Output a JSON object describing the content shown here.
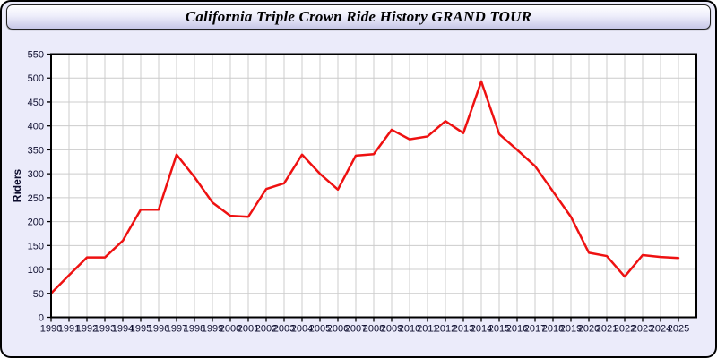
{
  "header": {
    "title": "California Triple Crown Ride History GRAND TOUR"
  },
  "colors": {
    "page_background": "#ebebfa",
    "plot_background": "#ffffff",
    "plot_border": "#000000",
    "grid": "#cccccc",
    "axis_text": "#0d0d2e",
    "series": "#ee1111",
    "header_gradient_top": "#ffffff",
    "header_gradient_bottom": "#c7c7e7"
  },
  "chart_data": {
    "type": "line",
    "title": "California Triple Crown Ride History GRAND TOUR",
    "xlabel": "",
    "ylabel": "Riders",
    "x": [
      1990,
      1991,
      1992,
      1993,
      1994,
      1995,
      1996,
      1997,
      1998,
      1999,
      2000,
      2001,
      2002,
      2003,
      2004,
      2005,
      2006,
      2007,
      2008,
      2009,
      2010,
      2011,
      2012,
      2013,
      2014,
      2015,
      2016,
      2017,
      2018,
      2019,
      2020,
      2021,
      2022,
      2023,
      2024,
      2025
    ],
    "values": [
      50,
      88,
      125,
      125,
      160,
      225,
      225,
      340,
      293,
      240,
      212,
      210,
      268,
      280,
      340,
      300,
      267,
      338,
      341,
      392,
      372,
      378,
      410,
      385,
      493,
      383,
      350,
      316,
      263,
      210,
      135,
      128,
      85,
      130,
      126,
      124
    ],
    "ylim": [
      0,
      550
    ],
    "ytick_step": 50,
    "grid": true,
    "legend": null,
    "legend_position": "none",
    "line_width": 2.5
  }
}
